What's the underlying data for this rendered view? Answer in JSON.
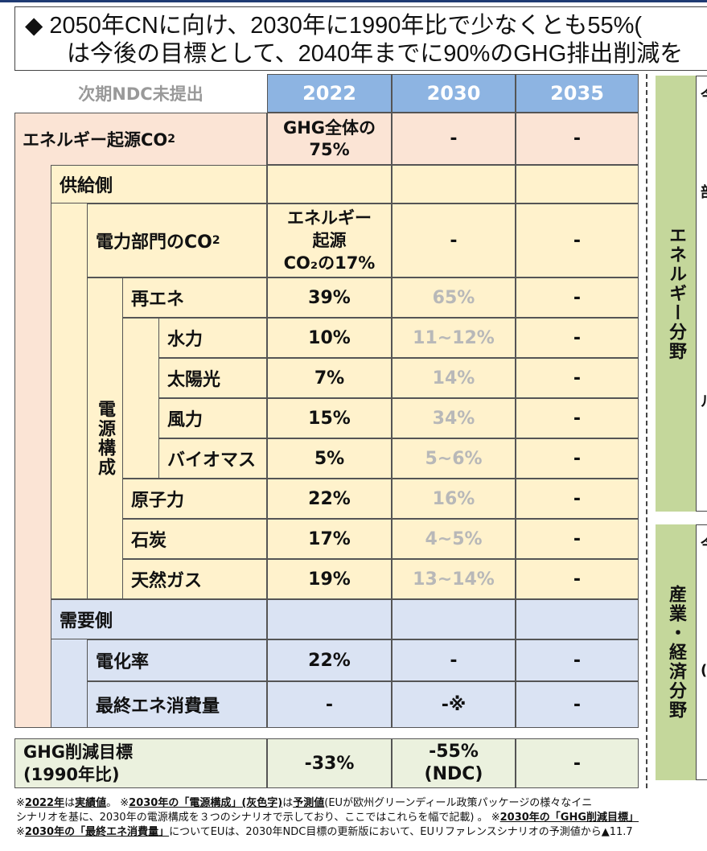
{
  "headline": {
    "line1": "◆ 2050年CNに向け、2030年に1990年比で少なくとも55%(",
    "line2": "は今後の目標として、2040年までに90%のGHG排出削減を"
  },
  "table": {
    "corner_label": "次期NDC未提出",
    "years": [
      "2022",
      "2030",
      "2035"
    ],
    "rows": [
      {
        "label": "エネルギー起源CO",
        "sub": "2",
        "v2022": "GHG全体の\n75%",
        "v2030": "-",
        "v2035": "-"
      },
      {
        "label": "供給側",
        "v2022": "",
        "v2030": "",
        "v2035": ""
      },
      {
        "label": "電力部門のCO",
        "sub": "2",
        "v2022": "エネルギー\n起源\nCO₂の17%",
        "v2030": "-",
        "v2035": "-"
      },
      {
        "label": "再エネ",
        "v2022": "39%",
        "v2030": "65%",
        "v2035": "-"
      },
      {
        "label": "水力",
        "v2022": "10%",
        "v2030": "11~12%",
        "v2035": "-"
      },
      {
        "label": "太陽光",
        "v2022": "7%",
        "v2030": "14%",
        "v2035": "-"
      },
      {
        "label": "風力",
        "v2022": "15%",
        "v2030": "34%",
        "v2035": "-"
      },
      {
        "label": "バイオマス",
        "v2022": "5%",
        "v2030": "5~6%",
        "v2035": "-"
      },
      {
        "label": "原子力",
        "v2022": "22%",
        "v2030": "16%",
        "v2035": "-"
      },
      {
        "label": "石炭",
        "v2022": "17%",
        "v2030": "4~5%",
        "v2035": "-"
      },
      {
        "label": "天然ガス",
        "v2022": "19%",
        "v2030": "13~14%",
        "v2035": "-"
      },
      {
        "label": "需要側",
        "v2022": "",
        "v2030": "",
        "v2035": ""
      },
      {
        "label": "電化率",
        "v2022": "22%",
        "v2030": "-",
        "v2035": "-"
      },
      {
        "label": "最終エネ消費量",
        "v2022": "-",
        "v2030": "-※",
        "v2035": "-"
      }
    ],
    "power_mix_label": "電源構成",
    "target": {
      "label": "GHG削減目標\n(1990年比)",
      "v2022": "-33%",
      "v2030": "-55%\n(NDC)",
      "v2035": "-"
    }
  },
  "side": {
    "energy_label": "エネルギー分野",
    "industry_label": "産業・経済分野",
    "energy_snippets": [
      "今",
      "部",
      "ル"
    ],
    "industry_snippets": [
      "今",
      "("
    ]
  },
  "notes": {
    "n1_a": "※",
    "n1_b": "2022年",
    "n1_c": "は",
    "n1_d": "実績値",
    "n1_e": "。 ※",
    "n1_f": "2030年の「電源構成」(灰色字)",
    "n1_g": "は",
    "n1_h": "予測値",
    "n1_i": "(EUが欧州グリーンディール政策パッケージの様々なイニ",
    "n2_a": "シナリオを基に、2030年の電源構成を３つのシナリオで示しており、ここではこれらを幅で記載) 。 ※",
    "n2_b": "2030年の「GHG削減目標」",
    "n3_a": "※",
    "n3_b": "2030年の「最終エネ消費量」",
    "n3_c": "についてEUは、2030年NDC目標の更新版において、EUリファレンスシナリオの予測値から▲11.7"
  },
  "colors": {
    "header_blue": "#8db4e2",
    "orange": "#fbe4d5",
    "yellow": "#fff2cc",
    "blue": "#dae3f3",
    "green": "#ebf1de",
    "side_green": "#c4d79b",
    "forecast_grey": "#b8b8b8"
  }
}
